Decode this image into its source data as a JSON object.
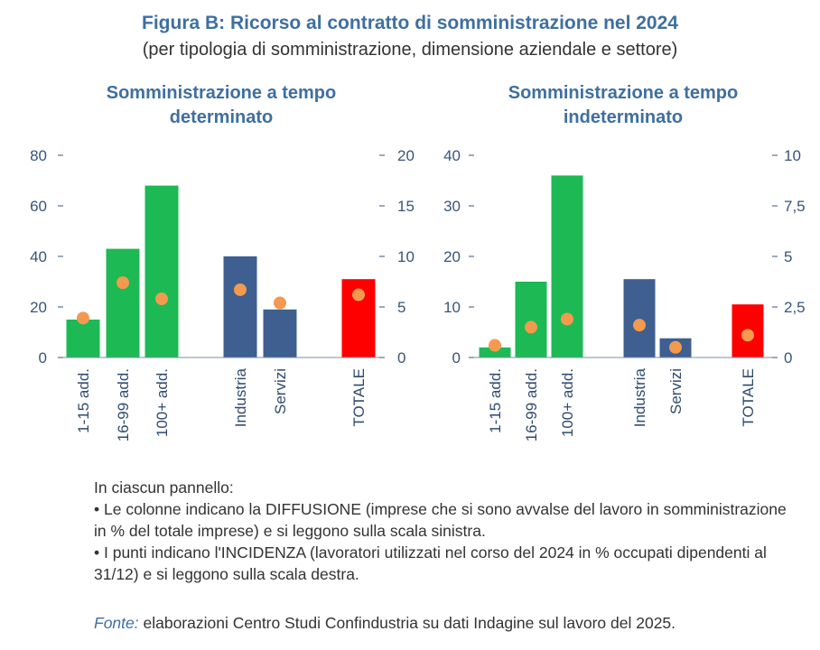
{
  "figure": {
    "title": "Figura B: Ricorso al contratto di somministrazione nel 2024",
    "subtitle": "(per tipologia di somministrazione, dimensione aziendale e settore)"
  },
  "colors": {
    "size_bar": "#1db954",
    "sector_bar": "#3e5f8f",
    "total_bar": "#ff0000",
    "dot": "#f39a4e",
    "axis": "#3a5478",
    "title": "#3f6fa0"
  },
  "chart_data": [
    {
      "type": "bar",
      "title": "Somministrazione a tempo determinato",
      "categories": [
        "1-15 add.",
        "16-99 add.",
        "100+ add.",
        "Industria",
        "Servizi",
        "TOTALE"
      ],
      "series": [
        {
          "values": [
            15,
            43,
            68,
            40,
            19,
            31
          ],
          "axis": "left",
          "mark": "bar"
        },
        {
          "values": [
            3.9,
            7.4,
            5.8,
            6.7,
            5.4,
            6.2
          ],
          "axis": "right",
          "mark": "dot"
        }
      ],
      "ylim_left": [
        0,
        80
      ],
      "yticks_left": [
        "0",
        "20",
        "40",
        "60",
        "80"
      ],
      "ylim_right": [
        0,
        20
      ],
      "yticks_right": [
        "0",
        "5",
        "10",
        "15",
        "20"
      ],
      "grid": false,
      "xlabel": "",
      "ylabel": ""
    },
    {
      "type": "bar",
      "title": "Somministrazione a tempo indeterminato",
      "categories": [
        "1-15 add.",
        "16-99 add.",
        "100+ add.",
        "Industria",
        "Servizi",
        "TOTALE"
      ],
      "series": [
        {
          "values": [
            2,
            15,
            36,
            15.5,
            3.8,
            10.5
          ],
          "axis": "left",
          "mark": "bar"
        },
        {
          "values": [
            0.6,
            1.5,
            1.9,
            1.6,
            0.5,
            1.1
          ],
          "axis": "right",
          "mark": "dot"
        }
      ],
      "ylim_left": [
        0,
        40
      ],
      "yticks_left": [
        "0",
        "10",
        "20",
        "30",
        "40"
      ],
      "ylim_right": [
        0,
        10
      ],
      "yticks_right": [
        "0",
        "2,5",
        "5",
        "7,5",
        "10"
      ],
      "grid": false,
      "xlabel": "",
      "ylabel": ""
    }
  ],
  "notes": {
    "intro": "In ciascun pannello:",
    "bullet1": "• Le colonne indicano la DIFFUSIONE (imprese che si sono avvalse del lavoro in somministrazione in % del totale imprese) e si leggono sulla scala sinistra.",
    "bullet2": "• I punti indicano l'INCIDENZA (lavoratori utilizzati nel corso del 2024 in % occupati dipendenti al 31/12) e si leggono sulla scala destra."
  },
  "source": {
    "label": "Fonte:",
    "text": " elaborazioni Centro Studi Confindustria su dati Indagine sul lavoro del 2025."
  }
}
